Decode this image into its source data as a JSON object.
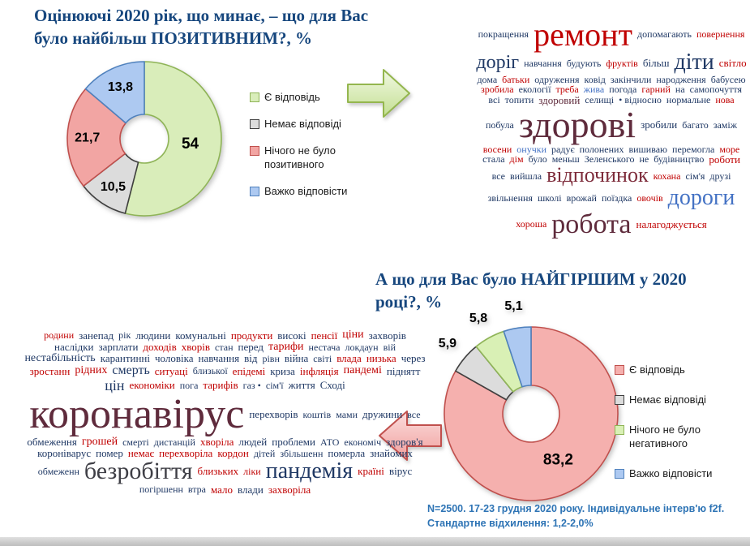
{
  "chart_data": [
    {
      "type": "pie",
      "donut": true,
      "title": "Оцінюючі 2020 рік, що минає, – що для Вас було найбільш ПОЗИТИВНИМ?, %",
      "categories": [
        "Є відповідь",
        "Немає відповіді",
        "Нічого не було позитивного",
        "Важко відповісти"
      ],
      "values": [
        54,
        10.5,
        21.7,
        13.8
      ],
      "value_labels": [
        "54",
        "10,5",
        "21,7",
        "13,8"
      ],
      "colors": [
        "#d9edba",
        "#dcdcdc",
        "#f2a5a3",
        "#adc9f1"
      ],
      "border_colors": [
        "#8fb457",
        "#3f3f3f",
        "#c0504d",
        "#4f81bd"
      ],
      "legend_position": "right",
      "label_r_big": 0.6,
      "label_r_small": 0.74
    },
    {
      "type": "pie",
      "donut": true,
      "title": "А що для Вас було НАЙГІРШИМ у 2020 році?,  %",
      "categories": [
        "Є відповідь",
        "Немає відповіді",
        "Нічого не було негативного",
        "Важко відповісти"
      ],
      "values": [
        83.2,
        5.9,
        5.8,
        5.1
      ],
      "value_labels": [
        "83,2",
        "5,9",
        "5,8",
        "5,1"
      ],
      "colors": [
        "#f5b0ae",
        "#dcdcdc",
        "#d9f0b5",
        "#adc9f1"
      ],
      "border_colors": [
        "#c0504d",
        "#3f3f3f",
        "#8fb457",
        "#4f81bd"
      ],
      "legend_position": "right",
      "label_r_big": 0.62,
      "label_r_small": 1.26
    }
  ],
  "footnote": {
    "line1": "N=2500. 17-23 грудня 2020 року. Індивідуальне інтерв'ю f2f.",
    "line2": "Стандартне відхилення: 1,2-2,0%"
  },
  "accent_colors": {
    "title_blue": "#17477e",
    "footnote_blue": "#2e74b5",
    "arrow_green_fill": "#c3df92",
    "arrow_green_border": "#94b64e",
    "arrow_pink_fill": "#f2a09e",
    "arrow_pink_border": "#c0504d"
  },
  "cloud_colors": {
    "navy": "#1f3864",
    "red": "#c00000",
    "maroon": "#5f2b3c",
    "darkred": "#7d2b3a",
    "blue": "#4472c4",
    "dark": "#3f3f46"
  },
  "cloud_positive": {
    "words": [
      {
        "t": "покращення",
        "c": "navy",
        "s": 12
      },
      {
        "t": "ремонт",
        "c": "red",
        "s": 40
      },
      {
        "t": "допомагають",
        "c": "navy",
        "s": 12
      },
      {
        "t": "повернення",
        "c": "red",
        "s": 12
      },
      {
        "t": "доріг",
        "c": "navy",
        "s": 24
      },
      {
        "t": "навчання",
        "c": "navy",
        "s": 12
      },
      {
        "t": "будують",
        "c": "navy",
        "s": 12
      },
      {
        "t": "фруктів",
        "c": "red",
        "s": 12
      },
      {
        "t": "більш",
        "c": "navy",
        "s": 13
      },
      {
        "t": "діти",
        "c": "navy",
        "s": 28
      },
      {
        "t": "світло",
        "c": "red",
        "s": 13
      },
      {
        "t": "дома",
        "c": "navy",
        "s": 12
      },
      {
        "t": "батьки",
        "c": "red",
        "s": 12
      },
      {
        "t": "одруження",
        "c": "navy",
        "s": 12
      },
      {
        "t": "ковід",
        "c": "navy",
        "s": 12
      },
      {
        "t": "закінчили",
        "c": "navy",
        "s": 12
      },
      {
        "t": "народження",
        "c": "navy",
        "s": 12
      },
      {
        "t": "бабусею",
        "c": "navy",
        "s": 12
      },
      {
        "t": "зробила",
        "c": "red",
        "s": 12
      },
      {
        "t": "екології",
        "c": "navy",
        "s": 12
      },
      {
        "t": "треба",
        "c": "red",
        "s": 12
      },
      {
        "t": "жива",
        "c": "blue",
        "s": 12
      },
      {
        "t": "погода",
        "c": "navy",
        "s": 12
      },
      {
        "t": "гарний",
        "c": "red",
        "s": 12
      },
      {
        "t": "на",
        "c": "navy",
        "s": 12
      },
      {
        "t": "самопочуття",
        "c": "navy",
        "s": 12
      },
      {
        "t": "всі",
        "c": "navy",
        "s": 12
      },
      {
        "t": "топити",
        "c": "navy",
        "s": 12
      },
      {
        "t": "здоровий",
        "c": "maroon",
        "s": 13
      },
      {
        "t": "селищі",
        "c": "navy",
        "s": 12
      },
      {
        "t": "• відносно",
        "c": "navy",
        "s": 12
      },
      {
        "t": "нормальне",
        "c": "navy",
        "s": 12
      },
      {
        "t": "нова",
        "c": "red",
        "s": 12
      },
      {
        "t": "побула",
        "c": "navy",
        "s": 12
      },
      {
        "t": "здорові",
        "c": "maroon",
        "s": 46
      },
      {
        "t": "зробили",
        "c": "navy",
        "s": 13
      },
      {
        "t": "багато",
        "c": "navy",
        "s": 12
      },
      {
        "t": "заміж",
        "c": "navy",
        "s": 12
      },
      {
        "t": "восени",
        "c": "red",
        "s": 12
      },
      {
        "t": "онучки",
        "c": "blue",
        "s": 12
      },
      {
        "t": "радує",
        "c": "navy",
        "s": 12
      },
      {
        "t": "полонених",
        "c": "navy",
        "s": 12
      },
      {
        "t": "вишиваю",
        "c": "navy",
        "s": 12
      },
      {
        "t": "перемогла",
        "c": "navy",
        "s": 12
      },
      {
        "t": "море",
        "c": "red",
        "s": 12
      },
      {
        "t": "стала",
        "c": "navy",
        "s": 12
      },
      {
        "t": "дім",
        "c": "red",
        "s": 12
      },
      {
        "t": "було",
        "c": "navy",
        "s": 12
      },
      {
        "t": "меньш",
        "c": "navy",
        "s": 12
      },
      {
        "t": "Зеленського",
        "c": "navy",
        "s": 12
      },
      {
        "t": "не",
        "c": "navy",
        "s": 12
      },
      {
        "t": "будівництво",
        "c": "navy",
        "s": 12
      },
      {
        "t": "роботи",
        "c": "red",
        "s": 13
      },
      {
        "t": "все",
        "c": "navy",
        "s": 12
      },
      {
        "t": "вийшла",
        "c": "navy",
        "s": 12
      },
      {
        "t": "відпочинок",
        "c": "darkred",
        "s": 26
      },
      {
        "t": "кохана",
        "c": "red",
        "s": 12
      },
      {
        "t": "сім'я",
        "c": "navy",
        "s": 12
      },
      {
        "t": "друзі",
        "c": "navy",
        "s": 12
      },
      {
        "t": "звільнення",
        "c": "navy",
        "s": 12
      },
      {
        "t": "школі",
        "c": "navy",
        "s": 12
      },
      {
        "t": "врожай",
        "c": "navy",
        "s": 12
      },
      {
        "t": "поїздка",
        "c": "navy",
        "s": 12
      },
      {
        "t": "овочів",
        "c": "red",
        "s": 12
      },
      {
        "t": "дороги",
        "c": "blue",
        "s": 28
      },
      {
        "t": "хороша",
        "c": "red",
        "s": 12
      },
      {
        "t": "робота",
        "c": "maroon",
        "s": 34
      },
      {
        "t": "налагоджується",
        "c": "red",
        "s": 13
      }
    ]
  },
  "cloud_negative": {
    "words": [
      {
        "t": "родини",
        "c": "red",
        "s": 12
      },
      {
        "t": "занепад",
        "c": "navy",
        "s": 13
      },
      {
        "t": "рік",
        "c": "navy",
        "s": 12
      },
      {
        "t": "людини",
        "c": "navy",
        "s": 13
      },
      {
        "t": "комунальні",
        "c": "navy",
        "s": 13
      },
      {
        "t": "продукти",
        "c": "red",
        "s": 13
      },
      {
        "t": "високі",
        "c": "navy",
        "s": 13
      },
      {
        "t": "пенсії",
        "c": "red",
        "s": 13
      },
      {
        "t": "ціни",
        "c": "red",
        "s": 14
      },
      {
        "t": "захворів",
        "c": "navy",
        "s": 13
      },
      {
        "t": "наслідки",
        "c": "navy",
        "s": 13
      },
      {
        "t": "зарплати",
        "c": "navy",
        "s": 13
      },
      {
        "t": "доходів",
        "c": "red",
        "s": 13
      },
      {
        "t": "хворів",
        "c": "red",
        "s": 13
      },
      {
        "t": "стан",
        "c": "navy",
        "s": 12
      },
      {
        "t": "перед",
        "c": "navy",
        "s": 13
      },
      {
        "t": "тарифи",
        "c": "red",
        "s": 14
      },
      {
        "t": "нестача",
        "c": "navy",
        "s": 12
      },
      {
        "t": "локдаун",
        "c": "navy",
        "s": 12
      },
      {
        "t": "вій",
        "c": "navy",
        "s": 12
      },
      {
        "t": "нестабільність",
        "c": "navy",
        "s": 14
      },
      {
        "t": "карантинні",
        "c": "navy",
        "s": 13
      },
      {
        "t": "чоловіка",
        "c": "navy",
        "s": 13
      },
      {
        "t": "навчання",
        "c": "navy",
        "s": 13
      },
      {
        "t": "від",
        "c": "navy",
        "s": 13
      },
      {
        "t": "рівн",
        "c": "navy",
        "s": 12
      },
      {
        "t": "війна",
        "c": "navy",
        "s": 13
      },
      {
        "t": "світі",
        "c": "navy",
        "s": 12
      },
      {
        "t": "влада",
        "c": "red",
        "s": 13
      },
      {
        "t": "низька",
        "c": "red",
        "s": 13
      },
      {
        "t": "через",
        "c": "navy",
        "s": 13
      },
      {
        "t": "зростанн",
        "c": "red",
        "s": 13
      },
      {
        "t": "рідних",
        "c": "red",
        "s": 14
      },
      {
        "t": "смерть",
        "c": "navy",
        "s": 16
      },
      {
        "t": "ситуаці",
        "c": "red",
        "s": 13
      },
      {
        "t": "близької",
        "c": "navy",
        "s": 12
      },
      {
        "t": "епідемі",
        "c": "red",
        "s": 13
      },
      {
        "t": "криза",
        "c": "navy",
        "s": 13
      },
      {
        "t": "інфляція",
        "c": "red",
        "s": 13
      },
      {
        "t": "пандемі",
        "c": "red",
        "s": 14
      },
      {
        "t": "піднятт",
        "c": "navy",
        "s": 13
      },
      {
        "t": "цін",
        "c": "navy",
        "s": 18
      },
      {
        "t": "економіки",
        "c": "red",
        "s": 13
      },
      {
        "t": "пога",
        "c": "navy",
        "s": 12
      },
      {
        "t": "тарифів",
        "c": "red",
        "s": 13
      },
      {
        "t": "газ •",
        "c": "navy",
        "s": 12
      },
      {
        "t": "сім'ї",
        "c": "navy",
        "s": 12
      },
      {
        "t": "життя",
        "c": "navy",
        "s": 13
      },
      {
        "t": "Сході",
        "c": "navy",
        "s": 13
      },
      {
        "t": "коронавірус",
        "c": "maroon",
        "s": 52
      },
      {
        "t": "перехворів",
        "c": "navy",
        "s": 13
      },
      {
        "t": "коштів",
        "c": "navy",
        "s": 12
      },
      {
        "t": "мами",
        "c": "navy",
        "s": 12
      },
      {
        "t": "дружини",
        "c": "navy",
        "s": 13
      },
      {
        "t": "все",
        "c": "navy",
        "s": 12
      },
      {
        "t": "обмеження",
        "c": "navy",
        "s": 13
      },
      {
        "t": "грошей",
        "c": "red",
        "s": 14
      },
      {
        "t": "смерті",
        "c": "navy",
        "s": 12
      },
      {
        "t": "дистанцій",
        "c": "navy",
        "s": 12
      },
      {
        "t": "хворіла",
        "c": "red",
        "s": 13
      },
      {
        "t": "людей",
        "c": "navy",
        "s": 13
      },
      {
        "t": "проблеми",
        "c": "navy",
        "s": 13
      },
      {
        "t": "АТО",
        "c": "navy",
        "s": 12
      },
      {
        "t": "економіч",
        "c": "navy",
        "s": 12
      },
      {
        "t": "здоров'я",
        "c": "navy",
        "s": 13
      },
      {
        "t": "короніварус",
        "c": "navy",
        "s": 13
      },
      {
        "t": "помер",
        "c": "navy",
        "s": 13
      },
      {
        "t": "немає",
        "c": "red",
        "s": 13
      },
      {
        "t": "перехворіла",
        "c": "red",
        "s": 13
      },
      {
        "t": "кордон",
        "c": "red",
        "s": 13
      },
      {
        "t": "дітей",
        "c": "navy",
        "s": 12
      },
      {
        "t": "збільшенн",
        "c": "navy",
        "s": 12
      },
      {
        "t": "померла",
        "c": "navy",
        "s": 13
      },
      {
        "t": "знайомих",
        "c": "navy",
        "s": 13
      },
      {
        "t": "обмеженн",
        "c": "navy",
        "s": 12
      },
      {
        "t": "безробіття",
        "c": "dark",
        "s": 30
      },
      {
        "t": "близьких",
        "c": "red",
        "s": 13
      },
      {
        "t": "ліки",
        "c": "red",
        "s": 12
      },
      {
        "t": "пандемія",
        "c": "navy",
        "s": 28
      },
      {
        "t": "країні",
        "c": "red",
        "s": 13
      },
      {
        "t": "вірус",
        "c": "navy",
        "s": 13
      },
      {
        "t": "погіршенн",
        "c": "navy",
        "s": 12
      },
      {
        "t": "втра",
        "c": "navy",
        "s": 12
      },
      {
        "t": "мало",
        "c": "red",
        "s": 13
      },
      {
        "t": "влади",
        "c": "navy",
        "s": 13
      },
      {
        "t": "захворіла",
        "c": "red",
        "s": 13
      }
    ]
  }
}
